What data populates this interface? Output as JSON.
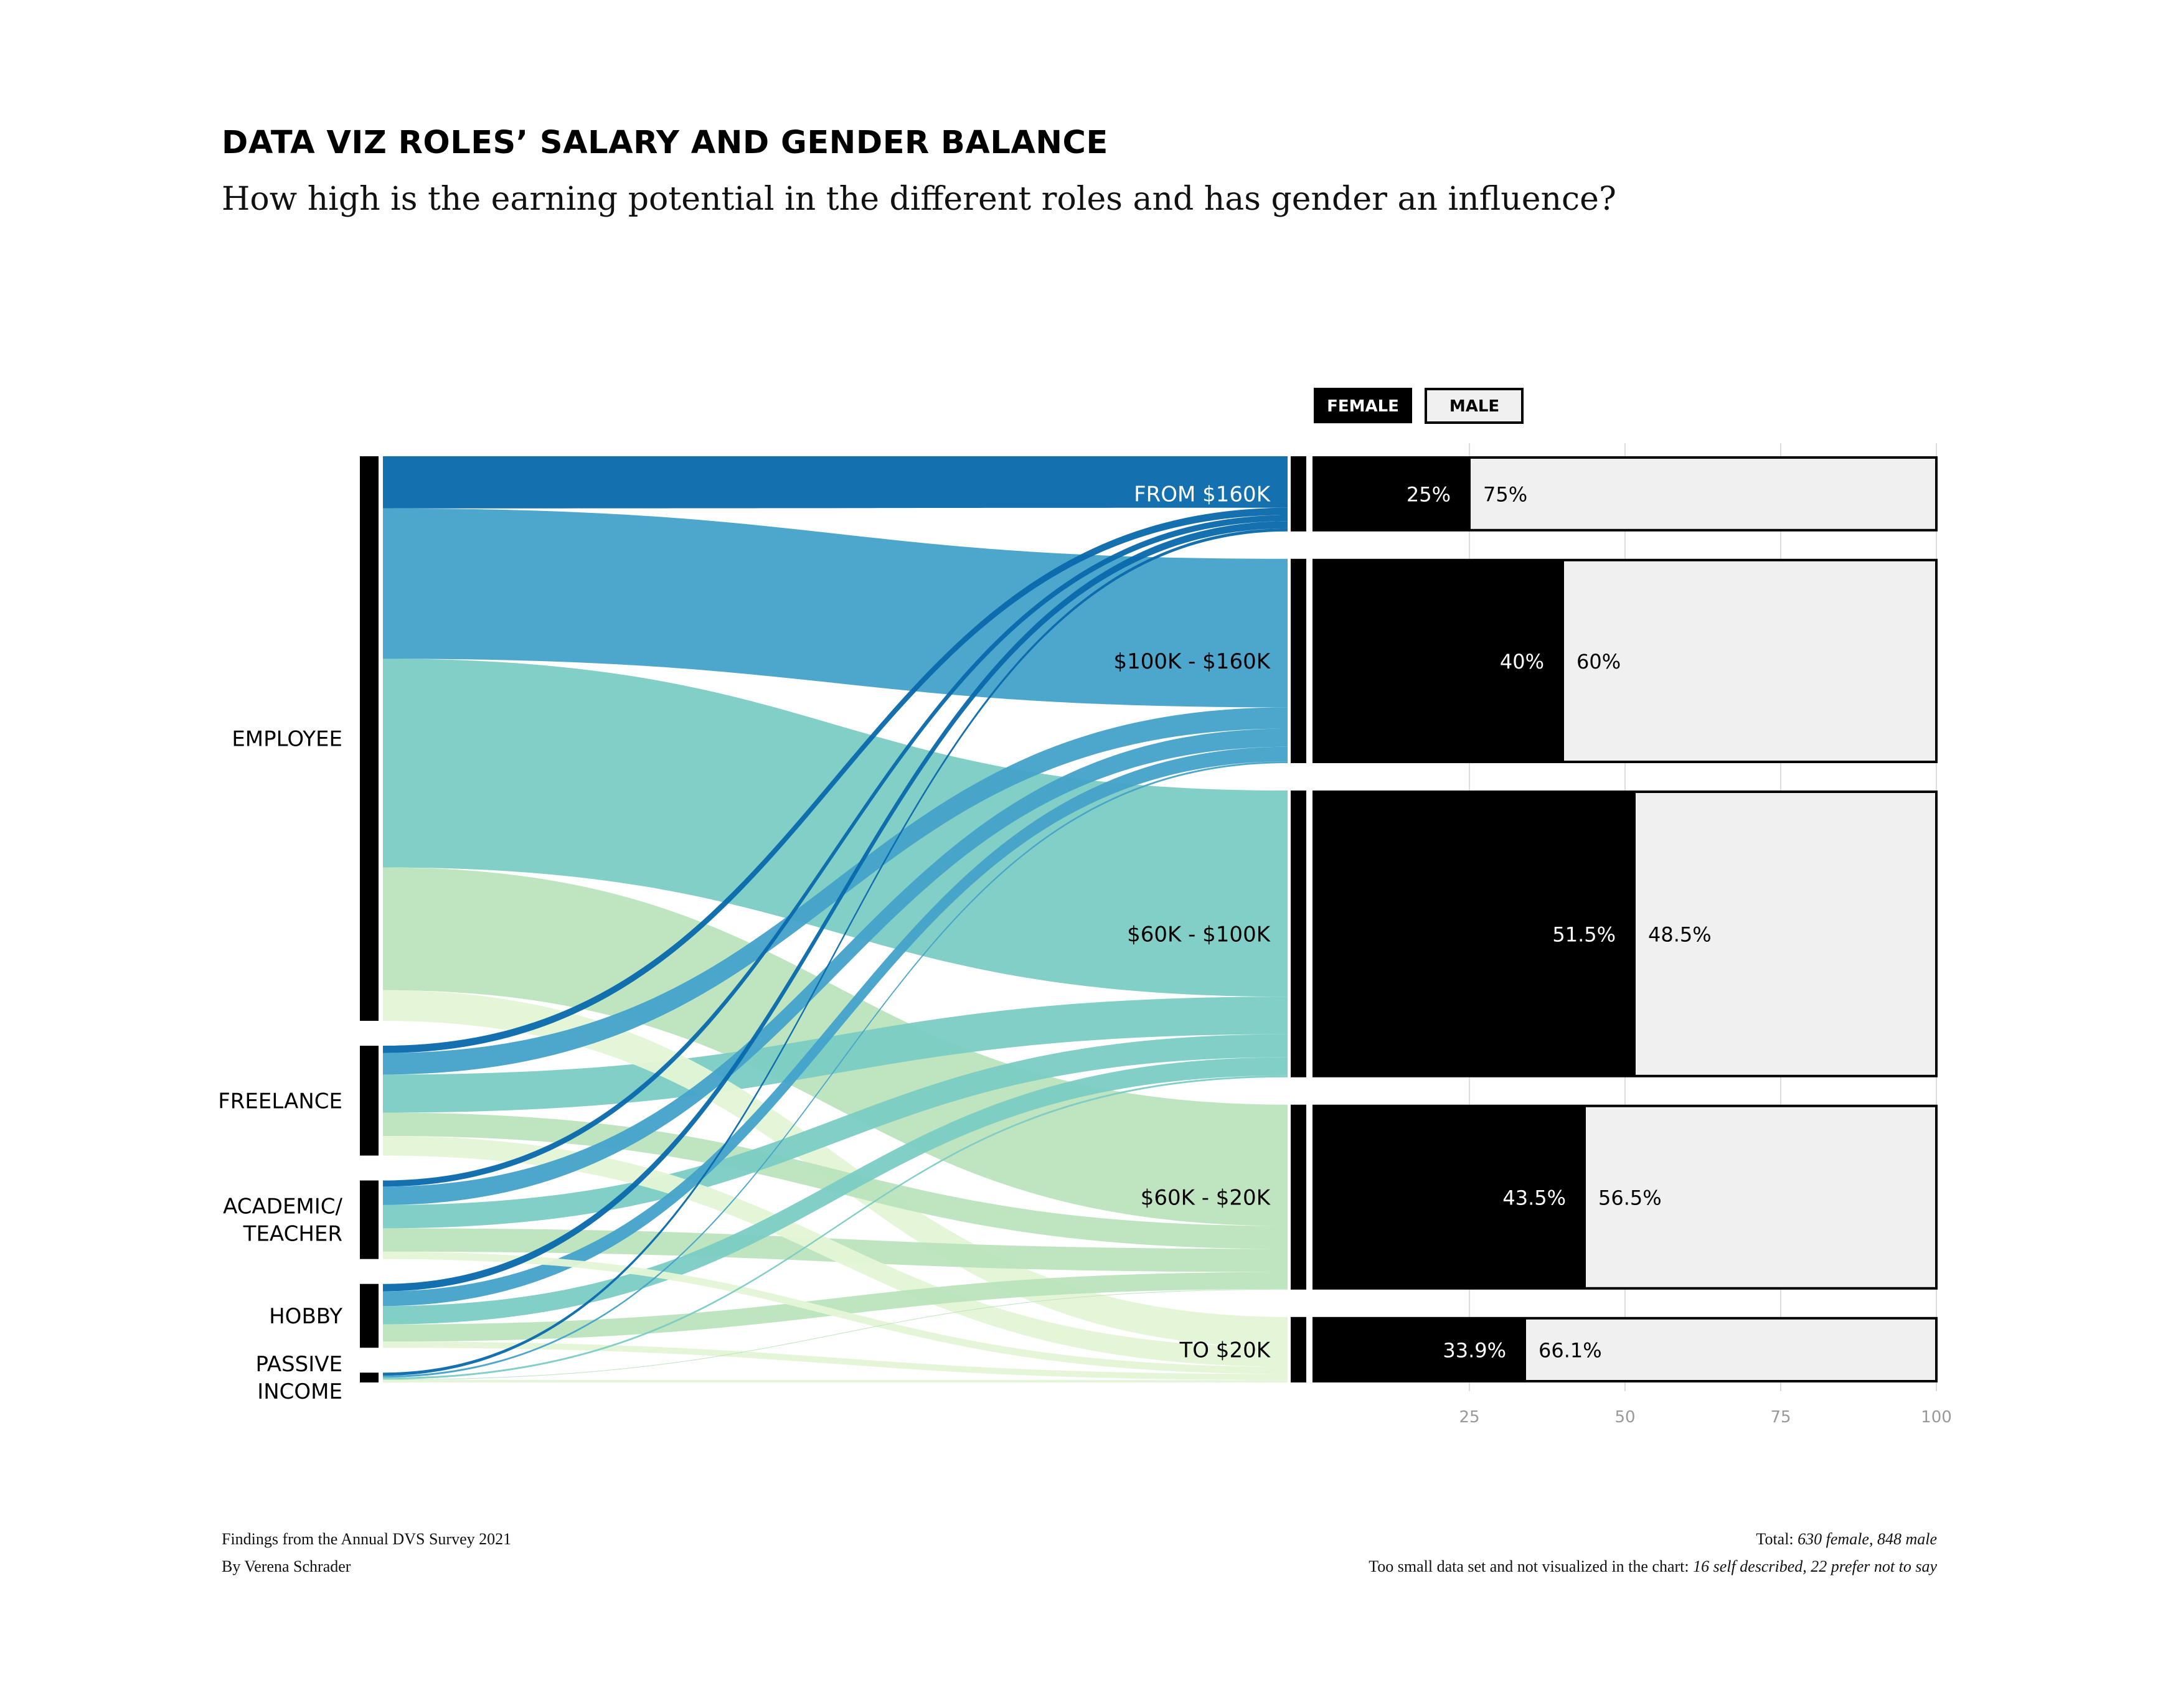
{
  "title": "DATA VIZ ROLES’ SALARY AND GENDER BALANCE",
  "subtitle": "How high is the earning potential in the different roles and has gender an influence?",
  "footer": {
    "source": "Findings from the Annual DVS Survey 2021",
    "author": "By Verena Schrader",
    "total_label": "Total:",
    "total_value": "630 female, 848 male",
    "note_label": "Too small data set and not visualized in the chart:",
    "note_value": "16 self described, 22 prefer not to say"
  },
  "legend": {
    "female": "FEMALE",
    "male": "MALE"
  },
  "colors": {
    "from160": "#0868ac",
    "100to160": "#43a2ca",
    "60to100": "#7bccc4",
    "20to60": "#bae4bc",
    "to20": "#e4f6d6",
    "female": "#000000",
    "male": "#f0f0f0"
  },
  "chart_data": [
    {
      "type": "sankey",
      "roles": [
        "EMPLOYEE",
        "FREELANCE",
        "ACADEMIC/\nTEACHER",
        "HOBBY",
        "PASSIVE\nINCOME"
      ],
      "salary_bands": [
        "FROM $160K",
        "$100K - $160K",
        "$60K - $100K",
        "$60K - $20K",
        "TO $20K"
      ],
      "flows": [
        {
          "role": "EMPLOYEE",
          "values": [
            85,
            245,
            340,
            200,
            50
          ]
        },
        {
          "role": "FREELANCE",
          "values": [
            12,
            35,
            62,
            38,
            32
          ]
        },
        {
          "role": "ACADEMIC/\nTEACHER",
          "values": [
            10,
            30,
            38,
            38,
            12
          ]
        },
        {
          "role": "HOBBY",
          "values": [
            12,
            24,
            30,
            28,
            10
          ]
        },
        {
          "role": "PASSIVE\nINCOME",
          "values": [
            5,
            3,
            3,
            1,
            4
          ]
        }
      ]
    },
    {
      "type": "bar",
      "stacked": true,
      "horizontal": true,
      "categories": [
        "FROM $160K",
        "$100K - $160K",
        "$60K - $100K",
        "$60K - $20K",
        "TO $20K"
      ],
      "series": [
        {
          "name": "FEMALE",
          "values": [
            25,
            40,
            51.5,
            43.5,
            33.9
          ],
          "labels": [
            "25%",
            "40%",
            "51.5%",
            "43.5%",
            "33.9%"
          ]
        },
        {
          "name": "MALE",
          "values": [
            75,
            60,
            48.5,
            56.5,
            66.1
          ],
          "labels": [
            "75%",
            "60%",
            "48.5%",
            "56.5%",
            "66.1%"
          ]
        }
      ],
      "xlim": [
        0,
        100
      ],
      "xticks": [
        "25",
        "50",
        "75",
        "100"
      ],
      "grid": true,
      "legend": "top-left"
    }
  ]
}
